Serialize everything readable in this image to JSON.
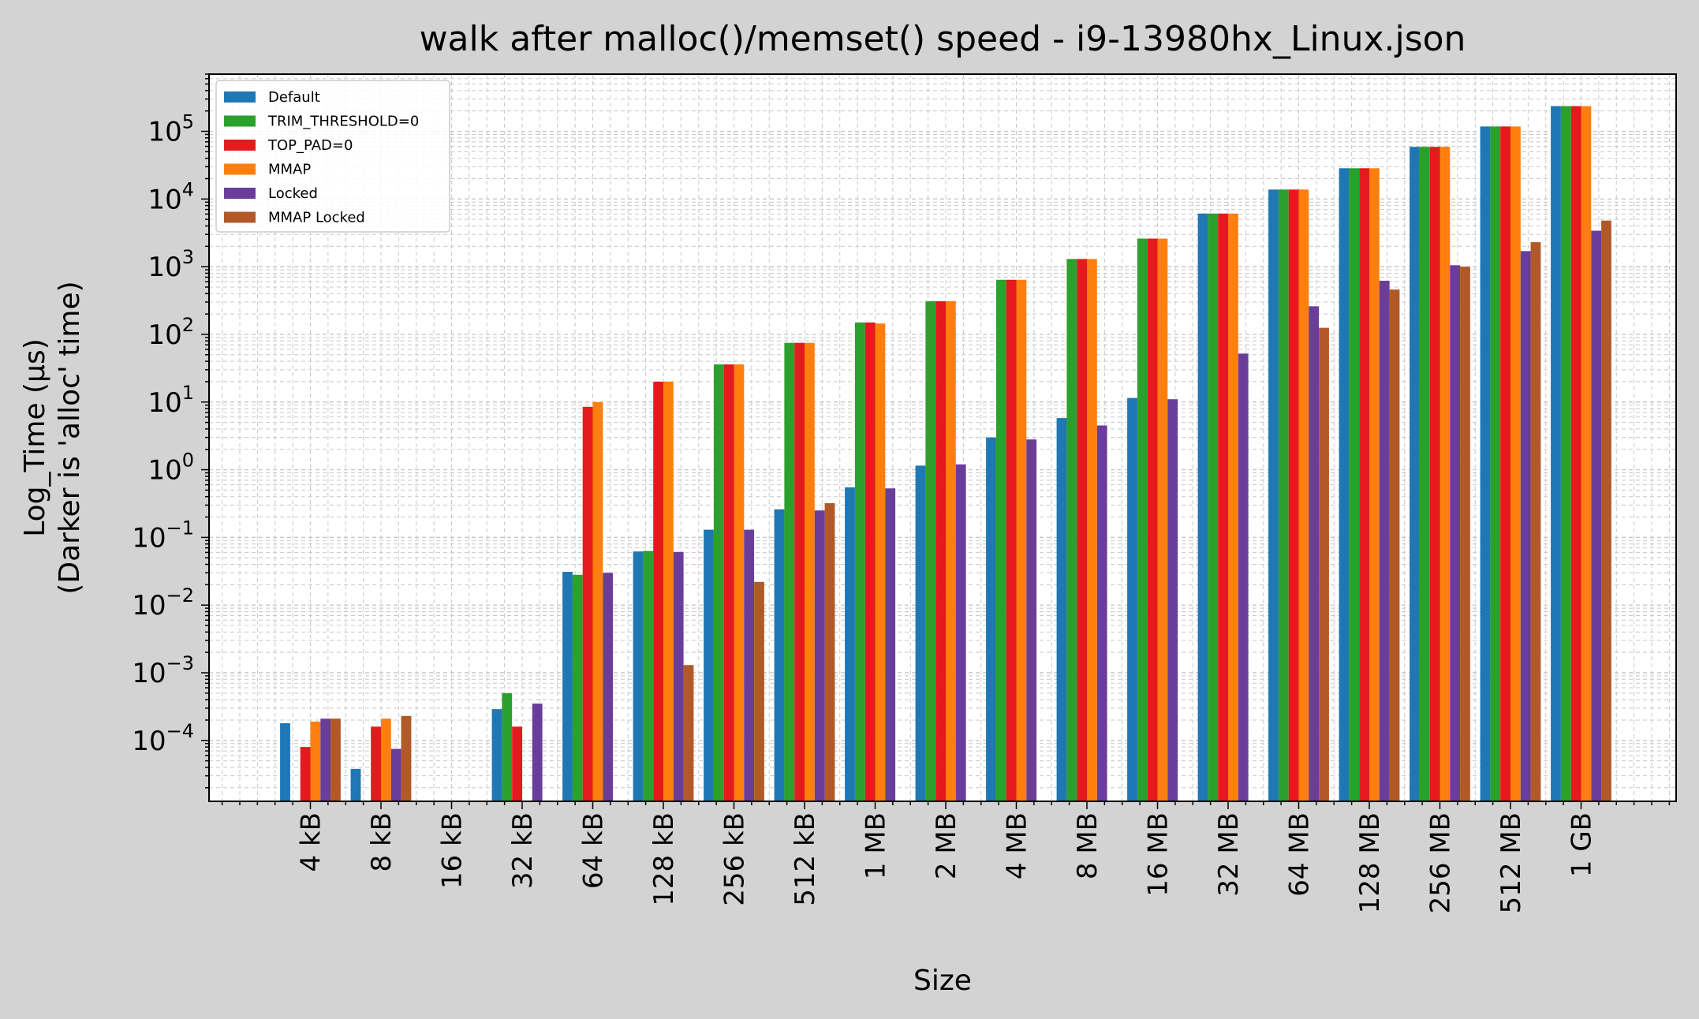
{
  "chart_data": {
    "type": "bar",
    "title": "walk after malloc()/memset() speed - i9-13980hx_Linux.json",
    "xlabel": "Size",
    "ylabel_line1": "Log_Time (µs)",
    "ylabel_line2": "(Darker is 'alloc' time)",
    "yscale": "log",
    "ylim": [
      1.26e-05,
      700000
    ],
    "yticks": [
      {
        "value": 0.0001,
        "base": "10",
        "exp": "−4"
      },
      {
        "value": 0.001,
        "base": "10",
        "exp": "−3"
      },
      {
        "value": 0.01,
        "base": "10",
        "exp": "−2"
      },
      {
        "value": 0.1,
        "base": "10",
        "exp": "−1"
      },
      {
        "value": 1,
        "base": "10",
        "exp": "0"
      },
      {
        "value": 10,
        "base": "10",
        "exp": "1"
      },
      {
        "value": 100,
        "base": "10",
        "exp": "2"
      },
      {
        "value": 1000,
        "base": "10",
        "exp": "3"
      },
      {
        "value": 10000,
        "base": "10",
        "exp": "4"
      },
      {
        "value": 100000,
        "base": "10",
        "exp": "5"
      }
    ],
    "grid": true,
    "legend_position": "top-left",
    "categories": [
      "4 kB",
      "8 kB",
      "16 kB",
      "32 kB",
      "64 kB",
      "128 kB",
      "256 kB",
      "512 kB",
      "1 MB",
      "2 MB",
      "4 MB",
      "8 MB",
      "16 MB",
      "32 MB",
      "64 MB",
      "128 MB",
      "256 MB",
      "512 MB",
      "1 GB"
    ],
    "series": [
      {
        "name": "Default",
        "color": "#1f77b4",
        "values": [
          0.00018,
          3.8e-05,
          null,
          0.00029,
          0.031,
          0.062,
          0.13,
          0.26,
          0.55,
          1.15,
          3.0,
          5.8,
          11.5,
          6100,
          13800,
          28500,
          59000,
          118000,
          236000
        ]
      },
      {
        "name": "TRIM_THRESHOLD=0",
        "color": "#2ca02c",
        "values": [
          null,
          null,
          null,
          0.0005,
          0.028,
          0.063,
          36,
          75,
          150,
          310,
          640,
          1300,
          2600,
          6100,
          13800,
          28500,
          59000,
          118000,
          236000
        ]
      },
      {
        "name": "TOP_PAD=0",
        "color": "#e41a1c",
        "values": [
          8e-05,
          0.00016,
          null,
          0.00016,
          8.5,
          20,
          36,
          75,
          150,
          310,
          640,
          1300,
          2600,
          6100,
          13800,
          28500,
          59000,
          118000,
          236000
        ]
      },
      {
        "name": "MMAP",
        "color": "#ff7f0e",
        "values": [
          0.00019,
          0.00021,
          null,
          null,
          10,
          20,
          36,
          75,
          145,
          310,
          640,
          1300,
          2600,
          6100,
          13800,
          28500,
          59000,
          118000,
          236000
        ]
      },
      {
        "name": "Locked",
        "color": "#6a3d9a",
        "values": [
          0.00021,
          7.5e-05,
          null,
          0.00035,
          0.03,
          0.061,
          0.13,
          0.25,
          0.53,
          1.2,
          2.8,
          4.5,
          11,
          52,
          260,
          620,
          1050,
          1700,
          3400
        ]
      },
      {
        "name": "MMAP Locked",
        "color": "#b15928",
        "values": [
          0.00021,
          0.00023,
          null,
          null,
          null,
          0.0013,
          0.022,
          0.32,
          null,
          null,
          null,
          null,
          null,
          null,
          125,
          460,
          1000,
          2300,
          4800
        ]
      }
    ]
  }
}
